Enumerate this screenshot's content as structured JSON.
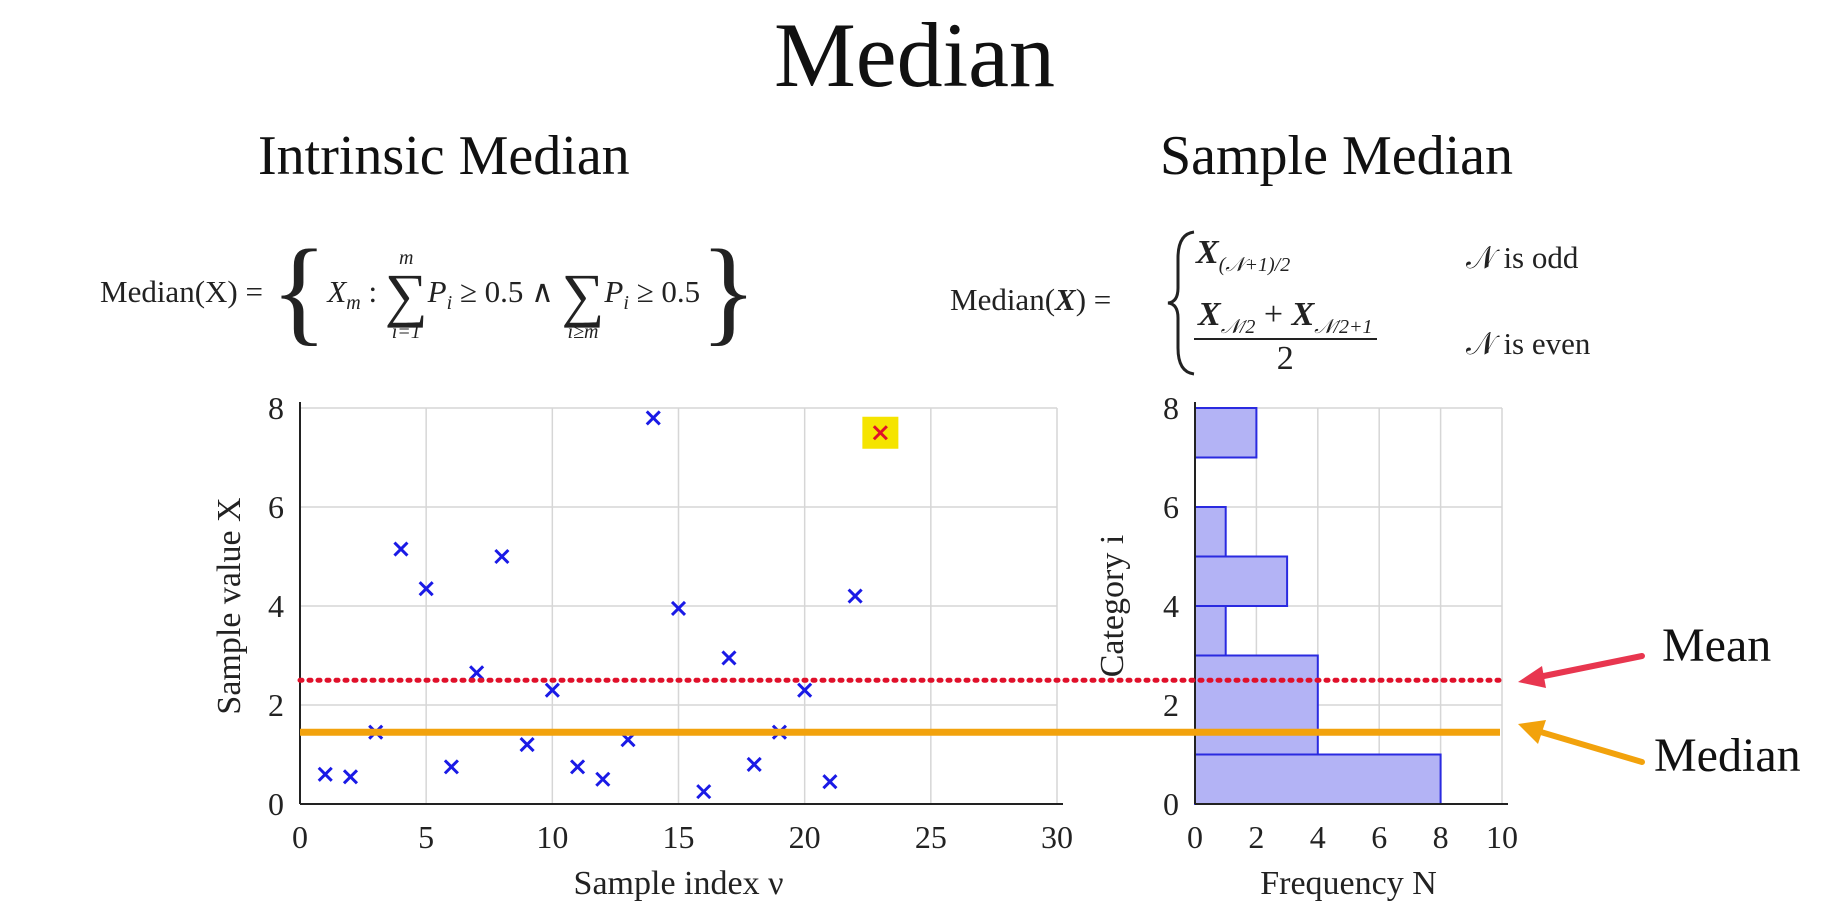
{
  "title": "Median",
  "left_heading": "Intrinsic Median",
  "right_heading": "Sample Median",
  "intrinsic_formula": {
    "lhs": "Median(X) =",
    "set_open": "{",
    "xm": "X",
    "xm_sub": "m",
    "colon": " :",
    "sum1_upper": "m",
    "sum1_lower": "i=1",
    "term1": "P",
    "term1_sub": "i",
    "cmp1": " ≥ 0.5 ∧",
    "sum2_lower": "i≥m",
    "term2": "P",
    "term2_sub": "i",
    "cmp2": " ≥ 0.5",
    "set_close": "}"
  },
  "sample_formula": {
    "lhs": "Median(",
    "lhs_var": "X",
    "lhs_end": ") =",
    "case1_var": "X",
    "case1_sub": "(𝒩+1)/2",
    "case1_cond": "𝒩 is odd",
    "case2_num_a": "X",
    "case2_num_a_sub": "𝒩/2",
    "case2_plus": " + ",
    "case2_num_b": "X",
    "case2_num_b_sub": "𝒩/2+1",
    "case2_den": "2",
    "case2_cond": "𝒩 is even"
  },
  "annotations": {
    "mean_label": "Mean",
    "median_label": "Median",
    "mean_color": "#e8364f",
    "median_color": "#f2a20c"
  },
  "chart_data": [
    {
      "type": "scatter",
      "xlabel": "Sample index ν",
      "ylabel": "Sample value X",
      "xlim": [
        0,
        30
      ],
      "ylim": [
        0,
        8
      ],
      "xticks": [
        0,
        5,
        10,
        15,
        20,
        25,
        30
      ],
      "yticks": [
        0,
        2,
        4,
        6,
        8
      ],
      "grid": true,
      "marker": "x",
      "marker_color": "#1a1ae6",
      "points": [
        {
          "x": 1,
          "y": 0.6
        },
        {
          "x": 2,
          "y": 0.55
        },
        {
          "x": 3,
          "y": 1.45
        },
        {
          "x": 4,
          "y": 5.15
        },
        {
          "x": 5,
          "y": 4.35
        },
        {
          "x": 6,
          "y": 0.75
        },
        {
          "x": 7,
          "y": 2.65
        },
        {
          "x": 8,
          "y": 5.0
        },
        {
          "x": 9,
          "y": 1.2
        },
        {
          "x": 10,
          "y": 2.3
        },
        {
          "x": 11,
          "y": 0.75
        },
        {
          "x": 12,
          "y": 0.5
        },
        {
          "x": 13,
          "y": 1.3
        },
        {
          "x": 14,
          "y": 7.8
        },
        {
          "x": 15,
          "y": 3.95
        },
        {
          "x": 16,
          "y": 0.25
        },
        {
          "x": 17,
          "y": 2.95
        },
        {
          "x": 18,
          "y": 0.8
        },
        {
          "x": 19,
          "y": 1.45
        },
        {
          "x": 20,
          "y": 2.3
        },
        {
          "x": 21,
          "y": 0.45
        },
        {
          "x": 22,
          "y": 4.2
        }
      ],
      "highlight_point": {
        "x": 23,
        "y": 7.5,
        "marker_color": "#e0102a",
        "box_color": "#f5e400"
      },
      "mean_line": {
        "y": 2.5,
        "style": "dotted",
        "color": "#e0102a"
      },
      "median_line": {
        "y": 1.45,
        "style": "solid",
        "color": "#f2a20c"
      }
    },
    {
      "type": "bar",
      "orientation": "horizontal",
      "xlabel": "Frequency N",
      "ylabel": "Category i",
      "xlim": [
        0,
        10
      ],
      "ylim": [
        0,
        8
      ],
      "xticks": [
        0,
        2,
        4,
        6,
        8,
        10
      ],
      "yticks": [
        0,
        2,
        4,
        6,
        8
      ],
      "grid": true,
      "bar_fill": "#b3b3f5",
      "bar_edge": "#2a2ae0",
      "bars": [
        {
          "y0": 0,
          "y1": 1,
          "value": 8
        },
        {
          "y0": 1,
          "y1": 3,
          "value": 4
        },
        {
          "y0": 3,
          "y1": 4,
          "value": 1
        },
        {
          "y0": 4,
          "y1": 5,
          "value": 3
        },
        {
          "y0": 5,
          "y1": 6,
          "value": 1
        },
        {
          "y0": 7,
          "y1": 8,
          "value": 2
        }
      ]
    }
  ]
}
